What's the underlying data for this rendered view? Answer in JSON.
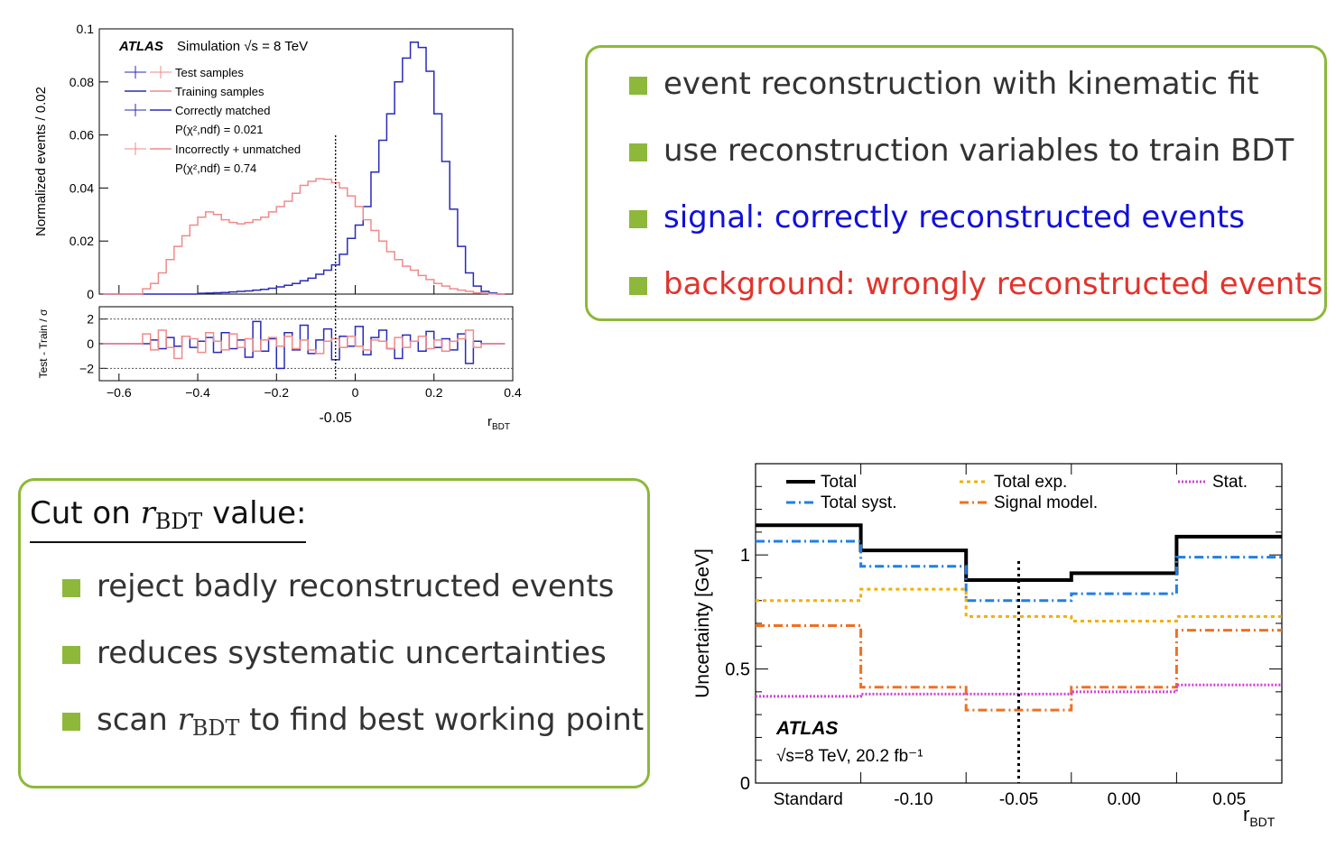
{
  "top_box": {
    "items": [
      {
        "text": "event reconstruction with kinematic fit",
        "color": "#333333"
      },
      {
        "text": "use reconstruction variables to train BDT",
        "color": "#333333"
      },
      {
        "text": "signal: correctly reconstructed events",
        "color": "#1010d8"
      },
      {
        "text": "background: wrongly reconstructed events",
        "color": "#e2332b"
      }
    ]
  },
  "bottom_box": {
    "heading_pre": "Cut on ",
    "heading_var": "r",
    "heading_sub": "BDT",
    "heading_post": " value:",
    "items": [
      {
        "text": "reject badly reconstructed events"
      },
      {
        "text": "reduces systematic uncertainties"
      },
      {
        "pre": "scan ",
        "var": "r",
        "sub": "BDT",
        "post": " to find best working point"
      }
    ]
  },
  "chart_data": [
    {
      "type": "line",
      "experiment": "ATLAS",
      "annotation": "Simulation √s = 8 TeV",
      "ylabel": "Normalized events / 0.02",
      "xlabel": "r_BDT",
      "xlim": [
        -0.65,
        0.4
      ],
      "ylim": [
        0,
        0.1
      ],
      "xticks": [
        "−0.6",
        "−0.4",
        "−0.2",
        "0",
        "0.2",
        "0.4"
      ],
      "yticks": [
        "0",
        "0.02",
        "0.04",
        "0.06",
        "0.08",
        "0.1"
      ],
      "extra_xtick": "-0.05",
      "cut_line": -0.05,
      "legend": [
        "Test samples",
        "Training samples",
        "Correctly matched",
        "P(χ²,ndf) = 0.021",
        "Incorrectly + unmatched",
        "P(χ²,ndf) = 0.74"
      ],
      "bin_edges_start": -0.64,
      "bin_width": 0.02,
      "series": [
        {
          "name": "Correctly matched",
          "color": "#2a2ab8",
          "values": [
            0,
            0,
            0,
            0,
            0,
            0,
            0,
            0,
            0,
            0,
            0,
            0,
            0.0003,
            0.0004,
            0.0005,
            0.0006,
            0.0008,
            0.001,
            0.0012,
            0.0015,
            0.0018,
            0.0022,
            0.0027,
            0.0033,
            0.004,
            0.005,
            0.006,
            0.0075,
            0.009,
            0.011,
            0.015,
            0.021,
            0.026,
            0.033,
            0.046,
            0.058,
            0.068,
            0.08,
            0.089,
            0.095,
            0.093,
            0.084,
            0.068,
            0.05,
            0.032,
            0.018,
            0.008,
            0.003,
            0.001,
            0.0004,
            0
          ]
        },
        {
          "name": "Incorrectly + unmatched",
          "color": "#f08a8a",
          "values": [
            0,
            0,
            0,
            0,
            0,
            0.002,
            0.004,
            0.008,
            0.013,
            0.018,
            0.022,
            0.026,
            0.029,
            0.031,
            0.03,
            0.028,
            0.027,
            0.0265,
            0.027,
            0.028,
            0.029,
            0.031,
            0.033,
            0.035,
            0.038,
            0.041,
            0.0425,
            0.0435,
            0.0433,
            0.042,
            0.04,
            0.037,
            0.033,
            0.028,
            0.024,
            0.02,
            0.016,
            0.013,
            0.0105,
            0.009,
            0.007,
            0.0055,
            0.004,
            0.003,
            0.002,
            0.0015,
            0.001,
            0.0005,
            0.0003,
            0.0001,
            0
          ]
        }
      ],
      "ratio_panel": {
        "ylabel": "Test - Train / σ",
        "yticks": [
          "2",
          "0",
          "−2"
        ],
        "ylim": [
          -3,
          3
        ],
        "series": [
          {
            "name": "Correctly matched",
            "color": "#2a2ab8",
            "values": [
              0,
              0,
              0,
              0,
              0,
              0,
              0.3,
              -0.4,
              0.5,
              -0.2,
              0.6,
              -0.3,
              0.2,
              0.5,
              -0.7,
              0.9,
              -0.4,
              0.3,
              -1.1,
              1.8,
              -0.6,
              0.4,
              -2.0,
              0.9,
              -0.5,
              1.5,
              -0.8,
              0.3,
              1.2,
              -1.3,
              0.6,
              -0.2,
              1.4,
              -0.9,
              0.5,
              1.1,
              -0.4,
              -1.2,
              0.7,
              0.2,
              -0.6,
              1.0,
              -0.3,
              0.4,
              -0.5,
              0.8,
              -1.6,
              0.2,
              0,
              0,
              0
            ]
          },
          {
            "name": "Incorrectly + unmatched",
            "color": "#f08a8a",
            "values": [
              0,
              0,
              0,
              0,
              0,
              0.8,
              -0.5,
              1.1,
              -0.3,
              -1.2,
              0.6,
              0.4,
              -0.7,
              0.9,
              0.2,
              -0.5,
              0.8,
              -0.3,
              0.4,
              -0.6,
              0.3,
              0.5,
              -0.2,
              0.6,
              -0.4,
              0.3,
              -0.5,
              -0.8,
              0.2,
              0.4,
              -0.3,
              0.6,
              -0.2,
              -0.5,
              0.3,
              0.2,
              -0.4,
              0.5,
              -0.3,
              0.2,
              0.6,
              -0.4,
              0.3,
              -0.6,
              0.2,
              0.4,
              1.1,
              -0.3,
              0,
              0,
              0
            ]
          }
        ]
      }
    },
    {
      "type": "line",
      "experiment": "ATLAS",
      "annotation": "√s=8 TeV, 20.2 fb⁻¹",
      "ylabel": "Uncertainty [GeV]",
      "xlabel": "r_BDT",
      "categories": [
        "Standard",
        "-0.10",
        "-0.05",
        "0.00",
        "0.05"
      ],
      "ylim": [
        0,
        1.4
      ],
      "yticks": [
        "0",
        "0.5",
        "1"
      ],
      "cut_category": "-0.05",
      "series": [
        {
          "name": "Total",
          "color": "#000000",
          "values": [
            1.13,
            1.02,
            0.89,
            0.92,
            1.08
          ]
        },
        {
          "name": "Total syst.",
          "color": "#1f7fe8",
          "values": [
            1.06,
            0.95,
            0.8,
            0.83,
            0.99
          ]
        },
        {
          "name": "Total exp.",
          "color": "#f0b000",
          "values": [
            0.8,
            0.85,
            0.73,
            0.71,
            0.73
          ]
        },
        {
          "name": "Signal model.",
          "color": "#f07020",
          "values": [
            0.69,
            0.42,
            0.32,
            0.42,
            0.67
          ]
        },
        {
          "name": "Stat.",
          "color": "#d040d8",
          "values": [
            0.38,
            0.39,
            0.39,
            0.4,
            0.43
          ]
        }
      ]
    }
  ]
}
